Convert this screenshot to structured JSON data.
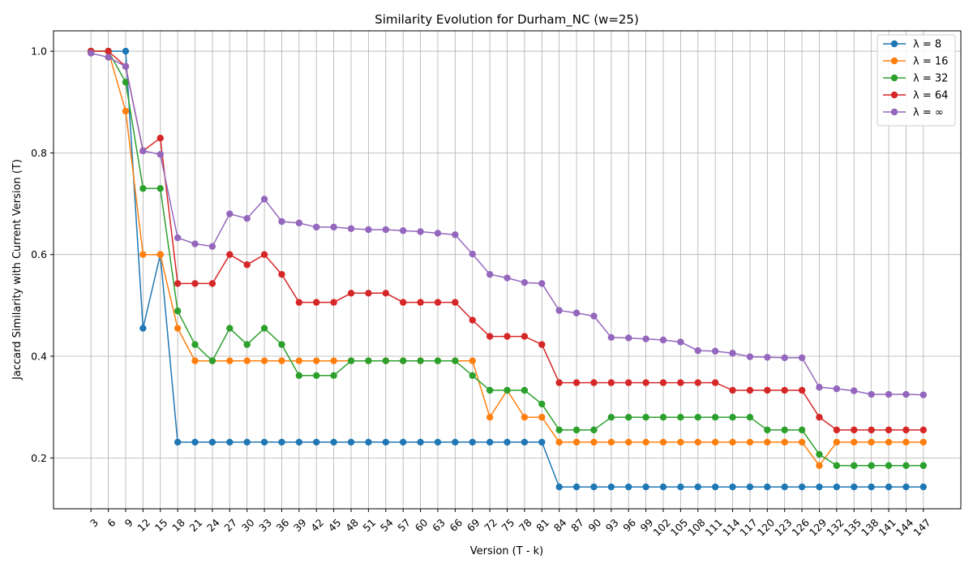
{
  "chart_data": {
    "type": "line",
    "title": "Similarity Evolution for Durham_NC (w=25)",
    "xlabel": "Version (T - k)",
    "ylabel": "Jaccard Similarity with Current Version (T)",
    "x": [
      3,
      6,
      9,
      12,
      15,
      18,
      21,
      24,
      27,
      30,
      33,
      36,
      39,
      42,
      45,
      48,
      51,
      54,
      57,
      60,
      63,
      66,
      69,
      72,
      75,
      78,
      81,
      84,
      87,
      90,
      93,
      96,
      99,
      102,
      105,
      108,
      111,
      114,
      117,
      120,
      123,
      126,
      129,
      132,
      135,
      138,
      141,
      144,
      147
    ],
    "ylim": [
      0.1,
      1.04
    ],
    "yticks": [
      0.2,
      0.4,
      0.6,
      0.8,
      1.0
    ],
    "ytick_labels": [
      "0.2",
      "0.4",
      "0.6",
      "0.8",
      "1.0"
    ],
    "grid": true,
    "legend_position": "top-right",
    "series": [
      {
        "name": "λ = 8",
        "color": "#1f77b4",
        "values": [
          1.0,
          1.0,
          1.0,
          0.455,
          0.6,
          0.231,
          0.231,
          0.231,
          0.231,
          0.231,
          0.231,
          0.231,
          0.231,
          0.231,
          0.231,
          0.231,
          0.231,
          0.231,
          0.231,
          0.231,
          0.231,
          0.231,
          0.231,
          0.231,
          0.231,
          0.231,
          0.231,
          0.143,
          0.143,
          0.143,
          0.143,
          0.143,
          0.143,
          0.143,
          0.143,
          0.143,
          0.143,
          0.143,
          0.143,
          0.143,
          0.143,
          0.143,
          0.143,
          0.143,
          0.143,
          0.143,
          0.143,
          0.143,
          0.143
        ]
      },
      {
        "name": "λ = 16",
        "color": "#ff7f0e",
        "values": [
          1.0,
          1.0,
          0.882,
          0.6,
          0.6,
          0.455,
          0.391,
          0.391,
          0.391,
          0.391,
          0.391,
          0.391,
          0.391,
          0.391,
          0.391,
          0.391,
          0.391,
          0.391,
          0.391,
          0.391,
          0.391,
          0.391,
          0.391,
          0.28,
          0.333,
          0.28,
          0.28,
          0.231,
          0.231,
          0.231,
          0.231,
          0.231,
          0.231,
          0.231,
          0.231,
          0.231,
          0.231,
          0.231,
          0.231,
          0.231,
          0.231,
          0.231,
          0.185,
          0.231,
          0.231,
          0.231,
          0.231,
          0.231,
          0.231
        ]
      },
      {
        "name": "λ = 32",
        "color": "#2ca02c",
        "values": [
          1.0,
          1.0,
          0.939,
          0.73,
          0.73,
          0.489,
          0.423,
          0.391,
          0.455,
          0.423,
          0.455,
          0.423,
          0.362,
          0.362,
          0.362,
          0.391,
          0.391,
          0.391,
          0.391,
          0.391,
          0.391,
          0.391,
          0.362,
          0.333,
          0.333,
          0.333,
          0.306,
          0.255,
          0.255,
          0.255,
          0.28,
          0.28,
          0.28,
          0.28,
          0.28,
          0.28,
          0.28,
          0.28,
          0.28,
          0.255,
          0.255,
          0.255,
          0.207,
          0.185,
          0.185,
          0.185,
          0.185,
          0.185,
          0.185
        ]
      },
      {
        "name": "λ = 64",
        "color": "#d62728",
        "values": [
          1.0,
          1.0,
          0.97,
          0.804,
          0.829,
          0.543,
          0.543,
          0.543,
          0.6,
          0.58,
          0.6,
          0.561,
          0.506,
          0.506,
          0.506,
          0.524,
          0.524,
          0.524,
          0.506,
          0.506,
          0.506,
          0.506,
          0.471,
          0.439,
          0.439,
          0.439,
          0.423,
          0.348,
          0.348,
          0.348,
          0.348,
          0.348,
          0.348,
          0.348,
          0.348,
          0.348,
          0.348,
          0.333,
          0.333,
          0.333,
          0.333,
          0.333,
          0.28,
          0.255,
          0.255,
          0.255,
          0.255,
          0.255,
          0.255
        ]
      },
      {
        "name": "λ = ∞",
        "color": "#9467bd",
        "values": [
          0.996,
          0.988,
          0.97,
          0.804,
          0.797,
          0.633,
          0.621,
          0.616,
          0.68,
          0.671,
          0.709,
          0.665,
          0.662,
          0.654,
          0.654,
          0.651,
          0.649,
          0.649,
          0.647,
          0.645,
          0.642,
          0.639,
          0.601,
          0.561,
          0.554,
          0.545,
          0.543,
          0.49,
          0.485,
          0.479,
          0.437,
          0.436,
          0.434,
          0.432,
          0.428,
          0.411,
          0.41,
          0.406,
          0.399,
          0.398,
          0.397,
          0.397,
          0.339,
          0.336,
          0.332,
          0.325,
          0.325,
          0.325,
          0.324
        ]
      }
    ]
  }
}
